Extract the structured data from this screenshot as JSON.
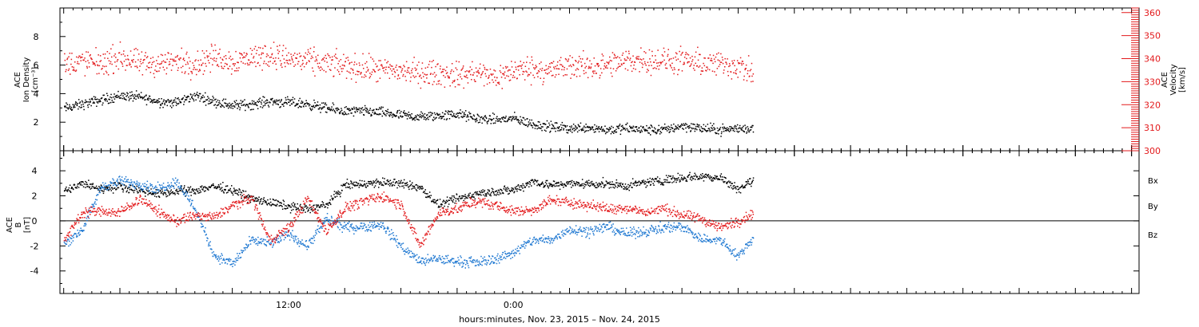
{
  "page": {
    "time_axis_label": "hours:minutes, Nov. 23, 2015 – Nov. 24, 2015"
  },
  "colors": {
    "density": "#000000",
    "velocity": "#e31a1c",
    "bx": "#000000",
    "by": "#1f78d1",
    "bz": "#e31a1c"
  },
  "chart_data": [
    {
      "type": "scatter",
      "name": "plasma-panel",
      "ylabel_left": [
        "ACE",
        "Ion Density",
        "[cm⁻³]"
      ],
      "ylabel_right": [
        "ACE",
        "Velocity",
        "[km/s]"
      ],
      "x_unit": "hours since 2015-11-23 00:00 UT",
      "xlim": [
        -0.2,
        57.4
      ],
      "x_tick_labels": [
        {
          "x": 12,
          "label": "12:00"
        },
        {
          "x": 24,
          "label": "0:00"
        }
      ],
      "ylim_left": [
        0,
        10
      ],
      "yticks_left": [
        2,
        4,
        6,
        8
      ],
      "ylim_right": [
        300,
        362
      ],
      "yticks_right": [
        300,
        310,
        320,
        330,
        340,
        350,
        360
      ],
      "series": [
        {
          "key": "density",
          "axis": "left",
          "x": [
            0.0,
            1.0,
            2.0,
            3.0,
            4.0,
            5.0,
            6.0,
            7.0,
            8.0,
            9.0,
            10.0,
            11.0,
            12.0,
            13.0,
            14.0,
            15.0,
            16.0,
            17.0,
            18.0,
            19.0,
            20.0,
            21.0,
            22.0,
            23.0,
            24.0,
            25.0,
            26.0,
            27.0,
            28.0,
            29.0,
            30.0,
            31.0,
            32.0,
            33.0,
            34.0,
            35.0,
            36.0,
            36.8
          ],
          "y": [
            3.0,
            3.3,
            3.6,
            3.9,
            3.8,
            3.5,
            3.4,
            3.9,
            3.5,
            3.2,
            3.3,
            3.5,
            3.4,
            3.3,
            3.0,
            2.8,
            2.8,
            2.7,
            2.5,
            2.4,
            2.5,
            2.6,
            2.3,
            2.2,
            2.3,
            1.9,
            1.7,
            1.6,
            1.7,
            1.5,
            1.6,
            1.5,
            1.5,
            1.8,
            1.6,
            1.5,
            1.6,
            1.6
          ]
        },
        {
          "key": "velocity",
          "axis": "right",
          "x": [
            0.0,
            1.0,
            2.0,
            3.0,
            4.0,
            5.0,
            6.0,
            7.0,
            8.0,
            9.0,
            10.0,
            11.0,
            12.0,
            13.0,
            14.0,
            15.0,
            16.0,
            17.0,
            18.0,
            19.0,
            20.0,
            21.0,
            22.0,
            23.0,
            24.0,
            25.0,
            26.0,
            27.0,
            28.0,
            29.0,
            30.0,
            31.0,
            32.0,
            33.0,
            34.0,
            35.0,
            36.0,
            36.8
          ],
          "y": [
            338,
            339,
            338,
            341,
            338,
            338,
            339,
            338,
            341,
            339,
            341,
            342,
            340,
            339,
            338,
            337,
            336,
            335,
            335,
            334,
            334,
            333,
            334,
            332,
            335,
            336,
            335,
            337,
            337,
            337,
            339,
            340,
            339,
            339,
            338,
            338,
            337,
            333
          ]
        }
      ]
    },
    {
      "type": "scatter",
      "name": "magnetic-field-panel",
      "ylabel_left": [
        "ACE",
        "B",
        "[nT]"
      ],
      "xlim": [
        -0.2,
        57.4
      ],
      "x_tick_labels": [
        {
          "x": 12,
          "label": "12:00"
        },
        {
          "x": 24,
          "label": "0:00"
        }
      ],
      "ylim": [
        -5.8,
        5.6
      ],
      "yticks": [
        -4,
        -2,
        0,
        2,
        4
      ],
      "legend": [
        "Bx",
        "By",
        "Bz"
      ],
      "legend_position": "right",
      "series": [
        {
          "key": "bx",
          "name": "Bx",
          "x": [
            0.0,
            1.0,
            2.0,
            3.0,
            4.0,
            5.0,
            6.0,
            7.0,
            8.0,
            9.0,
            10.0,
            11.0,
            12.0,
            13.0,
            14.0,
            15.0,
            16.0,
            17.0,
            18.0,
            19.0,
            20.0,
            21.0,
            22.0,
            23.0,
            24.0,
            25.0,
            26.0,
            27.0,
            28.0,
            29.0,
            30.0,
            31.0,
            32.0,
            33.0,
            34.0,
            35.0,
            36.0,
            36.8
          ],
          "y": [
            2.4,
            3.0,
            2.6,
            2.8,
            2.5,
            2.2,
            2.4,
            2.5,
            2.8,
            2.5,
            1.8,
            1.5,
            1.2,
            1.0,
            1.3,
            2.9,
            3.0,
            3.1,
            3.0,
            2.7,
            1.3,
            1.8,
            2.2,
            2.4,
            2.5,
            3.2,
            2.9,
            3.0,
            3.0,
            3.0,
            2.8,
            3.1,
            3.3,
            3.5,
            3.6,
            3.5,
            2.6,
            3.3
          ]
        },
        {
          "key": "by",
          "name": "By",
          "x": [
            0.0,
            1.0,
            2.0,
            3.0,
            4.0,
            5.0,
            6.0,
            7.0,
            8.0,
            9.0,
            10.0,
            11.0,
            12.0,
            13.0,
            14.0,
            15.0,
            16.0,
            17.0,
            18.0,
            19.0,
            20.0,
            21.0,
            22.0,
            23.0,
            24.0,
            25.0,
            26.0,
            27.0,
            28.0,
            29.0,
            30.0,
            31.0,
            32.0,
            33.0,
            34.0,
            35.0,
            36.0,
            36.8
          ],
          "y": [
            -1.8,
            -0.6,
            2.8,
            3.2,
            3.0,
            2.6,
            3.2,
            1.0,
            -2.7,
            -3.4,
            -1.5,
            -1.8,
            -1.0,
            -2.0,
            0.2,
            -0.5,
            -0.4,
            -0.3,
            -2.0,
            -3.2,
            -3.0,
            -3.2,
            -3.3,
            -3.0,
            -2.5,
            -1.5,
            -1.5,
            -0.6,
            -0.8,
            -0.4,
            -1.0,
            -0.8,
            -0.5,
            -0.4,
            -1.4,
            -1.5,
            -2.8,
            -1.2
          ]
        },
        {
          "key": "bz",
          "name": "Bz",
          "x": [
            0.0,
            1.0,
            2.0,
            3.0,
            4.0,
            5.0,
            6.0,
            7.0,
            8.0,
            9.0,
            10.0,
            11.0,
            12.0,
            13.0,
            14.0,
            15.0,
            16.0,
            17.0,
            18.0,
            19.0,
            20.0,
            21.0,
            22.0,
            23.0,
            24.0,
            25.0,
            26.0,
            27.0,
            28.0,
            29.0,
            30.0,
            31.0,
            32.0,
            33.0,
            34.0,
            35.0,
            36.0,
            36.8
          ],
          "y": [
            -1.6,
            0.8,
            0.8,
            0.7,
            1.8,
            0.8,
            0.0,
            0.5,
            0.3,
            1.3,
            1.9,
            -1.5,
            -0.5,
            1.8,
            -0.8,
            1.1,
            1.6,
            2.0,
            1.3,
            -2.0,
            0.7,
            1.0,
            1.6,
            1.3,
            0.8,
            0.9,
            1.7,
            1.5,
            1.3,
            1.0,
            1.1,
            0.7,
            1.0,
            0.5,
            0.2,
            -0.5,
            0.0,
            0.7
          ]
        }
      ]
    }
  ]
}
